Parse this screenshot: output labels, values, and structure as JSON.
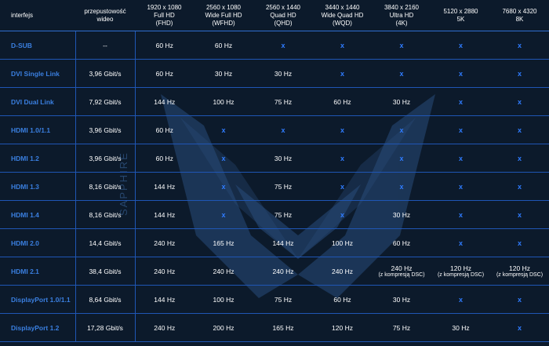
{
  "watermark": "SAPPHIRE",
  "header": {
    "interface": "interfejs",
    "bandwidth": [
      "przepustowość",
      "wideo"
    ],
    "columns": [
      [
        "1920 x 1080",
        "Full HD",
        "(FHD)"
      ],
      [
        "2560 x 1080",
        "Wide Full HD",
        "(WFHD)"
      ],
      [
        "2560 x 1440",
        "Quad HD",
        "(QHD)"
      ],
      [
        "3440 x 1440",
        "Wide Quad HD",
        "(WQD)"
      ],
      [
        "3840 x 2160",
        "Ultra HD",
        "(4K)"
      ],
      [
        "5120 x 2880",
        "5K",
        ""
      ],
      [
        "7680 x 4320",
        "8K",
        ""
      ]
    ]
  },
  "rows": [
    {
      "name": "D-SUB",
      "bw": "--",
      "cells": [
        [
          "60 Hz"
        ],
        [
          "60 Hz"
        ],
        [
          "x"
        ],
        [
          "x"
        ],
        [
          "x"
        ],
        [
          "x"
        ],
        [
          "x"
        ]
      ]
    },
    {
      "name": "DVI Single Link",
      "bw": "3,96 Gbit/s",
      "cells": [
        [
          "60 Hz"
        ],
        [
          "30 Hz"
        ],
        [
          "30 Hz"
        ],
        [
          "x"
        ],
        [
          "x"
        ],
        [
          "x"
        ],
        [
          "x"
        ]
      ]
    },
    {
      "name": "DVI Dual Link",
      "bw": "7,92 Gbit/s",
      "cells": [
        [
          "144 Hz"
        ],
        [
          "100 Hz"
        ],
        [
          "75 Hz"
        ],
        [
          "60 Hz"
        ],
        [
          "30 Hz"
        ],
        [
          "x"
        ],
        [
          "x"
        ]
      ]
    },
    {
      "name": "HDMI 1.0/1.1",
      "bw": "3,96 Gbit/s",
      "cells": [
        [
          "60 Hz"
        ],
        [
          "x"
        ],
        [
          "x"
        ],
        [
          "x"
        ],
        [
          "x"
        ],
        [
          "x"
        ],
        [
          "x"
        ]
      ]
    },
    {
      "name": "HDMI 1.2",
      "bw": "3,96 Gbit/s",
      "cells": [
        [
          "60 Hz"
        ],
        [
          "x"
        ],
        [
          "30 Hz"
        ],
        [
          "x"
        ],
        [
          "x"
        ],
        [
          "x"
        ],
        [
          "x"
        ]
      ]
    },
    {
      "name": "HDMI 1.3",
      "bw": "8,16 Gbit/s",
      "cells": [
        [
          "144 Hz"
        ],
        [
          "x"
        ],
        [
          "75 Hz"
        ],
        [
          "x"
        ],
        [
          "x"
        ],
        [
          "x"
        ],
        [
          "x"
        ]
      ]
    },
    {
      "name": "HDMI 1.4",
      "bw": "8,16 Gbit/s",
      "cells": [
        [
          "144 Hz"
        ],
        [
          "x"
        ],
        [
          "75 Hz"
        ],
        [
          "x"
        ],
        [
          "30 Hz"
        ],
        [
          "x"
        ],
        [
          "x"
        ]
      ]
    },
    {
      "name": "HDMI 2.0",
      "bw": "14,4 Gbit/s",
      "cells": [
        [
          "240 Hz"
        ],
        [
          "165 Hz"
        ],
        [
          "144 Hz"
        ],
        [
          "100 Hz"
        ],
        [
          "60 Hz"
        ],
        [
          "x"
        ],
        [
          "x"
        ]
      ]
    },
    {
      "name": "HDMI 2.1",
      "bw": "38,4 Gbit/s",
      "cells": [
        [
          "240 Hz"
        ],
        [
          "240 Hz"
        ],
        [
          "240 Hz"
        ],
        [
          "240 Hz"
        ],
        [
          "240 Hz",
          "(z kompresją DSC)"
        ],
        [
          "120 Hz",
          "(z kompresją DSC)"
        ],
        [
          "120 Hz",
          "(z kompresją DSC)"
        ]
      ]
    },
    {
      "name": "DisplayPort 1.0/1.1",
      "bw": "8,64 Gbit/s",
      "cells": [
        [
          "144 Hz"
        ],
        [
          "100 Hz"
        ],
        [
          "75 Hz"
        ],
        [
          "60 Hz"
        ],
        [
          "30 Hz"
        ],
        [
          "x"
        ],
        [
          "x"
        ]
      ]
    },
    {
      "name": "DisplayPort 1.2",
      "bw": "17,28 Gbit/s",
      "cells": [
        [
          "240 Hz"
        ],
        [
          "200 Hz"
        ],
        [
          "165 Hz"
        ],
        [
          "120 Hz"
        ],
        [
          "75 Hz"
        ],
        [
          "30 Hz"
        ],
        [
          "x"
        ]
      ]
    }
  ]
}
